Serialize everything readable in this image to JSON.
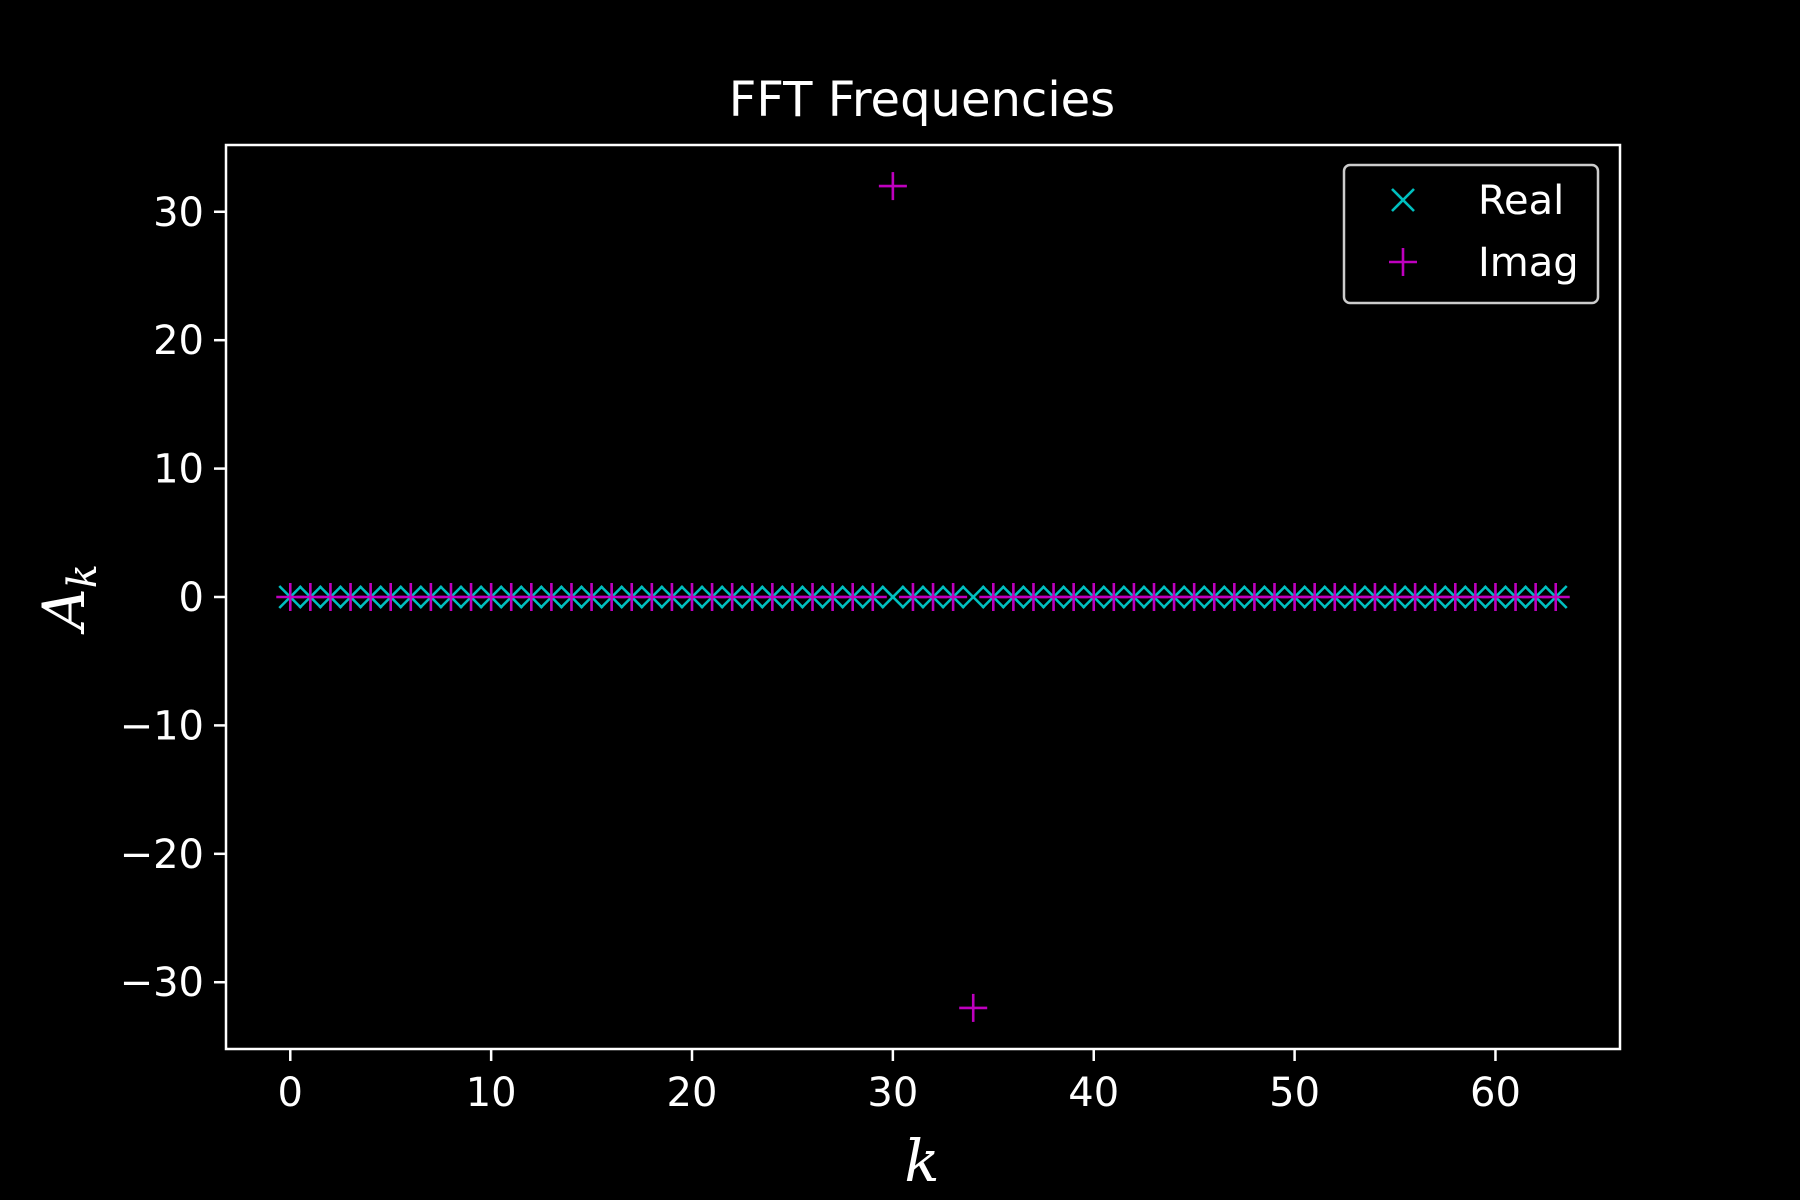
{
  "chart_data": {
    "type": "scatter",
    "title": "FFT Frequencies",
    "xlabel": "k",
    "ylabel": {
      "base": "A",
      "sub": "k"
    },
    "xlim": [
      -3.2,
      66.2
    ],
    "ylim": [
      -35.2,
      35.2
    ],
    "xticks": [
      0,
      10,
      20,
      30,
      40,
      50,
      60
    ],
    "yticks": [
      30,
      20,
      10,
      0,
      -10,
      -20,
      -30
    ],
    "ytick_labels": [
      "30",
      "20",
      "10",
      "0",
      "−10",
      "−20",
      "−30"
    ],
    "grid": false,
    "legend_position": "top-right",
    "x": [
      0,
      1,
      2,
      3,
      4,
      5,
      6,
      7,
      8,
      9,
      10,
      11,
      12,
      13,
      14,
      15,
      16,
      17,
      18,
      19,
      20,
      21,
      22,
      23,
      24,
      25,
      26,
      27,
      28,
      29,
      30,
      31,
      32,
      33,
      34,
      35,
      36,
      37,
      38,
      39,
      40,
      41,
      42,
      43,
      44,
      45,
      46,
      47,
      48,
      49,
      50,
      51,
      52,
      53,
      54,
      55,
      56,
      57,
      58,
      59,
      60,
      61,
      62,
      63
    ],
    "series": [
      {
        "name": "Real",
        "marker": "x",
        "color": "#00bfbf",
        "values": [
          0,
          0,
          0,
          0,
          0,
          0,
          0,
          0,
          0,
          0,
          0,
          0,
          0,
          0,
          0,
          0,
          0,
          0,
          0,
          0,
          0,
          0,
          0,
          0,
          0,
          0,
          0,
          0,
          0,
          0,
          0,
          0,
          0,
          0,
          0,
          0,
          0,
          0,
          0,
          0,
          0,
          0,
          0,
          0,
          0,
          0,
          0,
          0,
          0,
          0,
          0,
          0,
          0,
          0,
          0,
          0,
          0,
          0,
          0,
          0,
          0,
          0,
          0,
          0
        ]
      },
      {
        "name": "Imag",
        "marker": "+",
        "color": "#bf00bf",
        "values": [
          0,
          0,
          0,
          0,
          0,
          0,
          0,
          0,
          0,
          0,
          0,
          0,
          0,
          0,
          0,
          0,
          0,
          0,
          0,
          0,
          0,
          0,
          0,
          0,
          0,
          0,
          0,
          0,
          0,
          0,
          32,
          0,
          0,
          0,
          -32,
          0,
          0,
          0,
          0,
          0,
          0,
          0,
          0,
          0,
          0,
          0,
          0,
          0,
          0,
          0,
          0,
          0,
          0,
          0,
          0,
          0,
          0,
          0,
          0,
          0,
          0,
          0,
          0,
          0
        ]
      }
    ]
  }
}
